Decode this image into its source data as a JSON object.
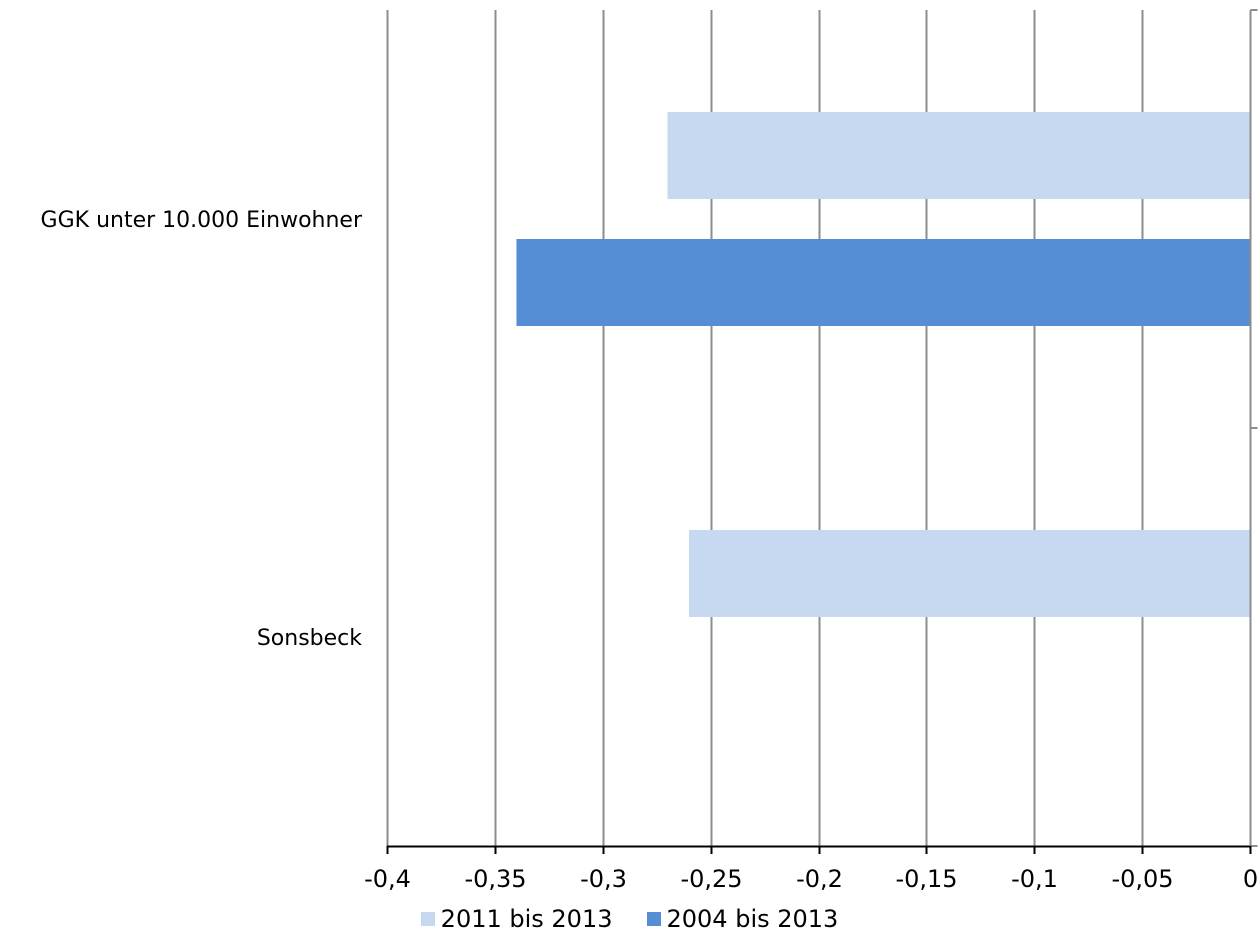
{
  "chart_data": {
    "type": "bar",
    "orientation": "horizontal",
    "categories": [
      "GGK unter 10.000 Einwohner",
      "Sonsbeck"
    ],
    "series": [
      {
        "name": "2011 bis 2013",
        "color": "#c6d9f1",
        "values": [
          -0.27,
          -0.26
        ]
      },
      {
        "name": "2004 bis 2013",
        "color": "#558ed5",
        "values": [
          -0.34,
          null
        ]
      }
    ],
    "xlim": [
      -0.4,
      0
    ],
    "xticks": [
      -0.4,
      -0.35,
      -0.3,
      -0.25,
      -0.2,
      -0.15,
      -0.1,
      -0.05,
      0
    ],
    "xtick_labels": [
      "-0,4",
      "-0,35",
      "-0,3",
      "-0,25",
      "-0,2",
      "-0,15",
      "-0,1",
      "-0,05",
      "0"
    ],
    "grid": true,
    "legend_position": "bottom",
    "title": "",
    "xlabel": "",
    "ylabel": ""
  }
}
